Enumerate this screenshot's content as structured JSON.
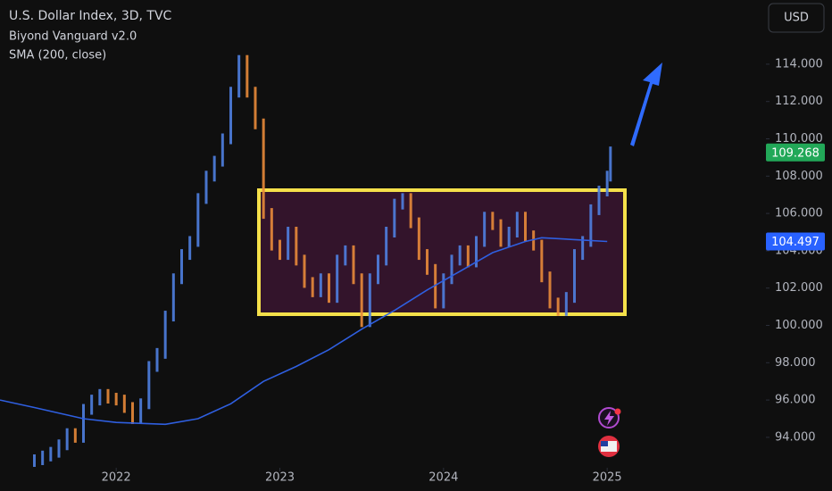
{
  "chart_data": {
    "type": "price",
    "title": "U.S. Dollar Index, 3D, TVC",
    "currency": "USD",
    "xlim": [
      2021.29,
      2025.97
    ],
    "xticks": [
      2022,
      2023,
      2024,
      2025
    ],
    "ylim": [
      92.56,
      117.44
    ],
    "yticks": [
      {
        "value": 94,
        "label": "94.000"
      },
      {
        "value": 96,
        "label": "96.000"
      },
      {
        "value": 98,
        "label": "98.000"
      },
      {
        "value": 100,
        "label": "100.000"
      },
      {
        "value": 102,
        "label": "102.000"
      },
      {
        "value": 104,
        "label": "104.000"
      },
      {
        "value": 106,
        "label": "106.000"
      },
      {
        "value": 108,
        "label": "108.000"
      },
      {
        "value": 110,
        "label": "110.000"
      },
      {
        "value": 112,
        "label": "112.000"
      },
      {
        "value": 114,
        "label": "114.000"
      }
    ],
    "series": [
      {
        "name": "Biyond Vanguard v2.0",
        "up_color": "#4f7fe0",
        "down_color": "#e8893a",
        "label_color": "#22a858",
        "x": [
          2021.5,
          2021.55,
          2021.6,
          2021.65,
          2021.7,
          2021.75,
          2021.8,
          2021.85,
          2021.9,
          2021.95,
          2022.0,
          2022.05,
          2022.1,
          2022.15,
          2022.2,
          2022.25,
          2022.3,
          2022.35,
          2022.4,
          2022.45,
          2022.5,
          2022.55,
          2022.6,
          2022.65,
          2022.7,
          2022.75,
          2022.8,
          2022.85,
          2022.9,
          2022.95,
          2023.0,
          2023.05,
          2023.1,
          2023.15,
          2023.2,
          2023.25,
          2023.3,
          2023.35,
          2023.4,
          2023.45,
          2023.5,
          2023.55,
          2023.6,
          2023.65,
          2023.7,
          2023.75,
          2023.8,
          2023.85,
          2023.9,
          2023.95,
          2024.0,
          2024.05,
          2024.1,
          2024.15,
          2024.2,
          2024.25,
          2024.3,
          2024.35,
          2024.4,
          2024.45,
          2024.5,
          2024.55,
          2024.6,
          2024.65,
          2024.7,
          2024.75,
          2024.8,
          2024.85,
          2024.9,
          2024.95,
          2025.0,
          2025.02
        ],
        "values": [
          92.8,
          93.0,
          93.2,
          93.6,
          94.2,
          94.0,
          95.5,
          96.0,
          96.3,
          96.1,
          96.0,
          95.6,
          95.0,
          95.8,
          97.8,
          98.5,
          100.5,
          102.5,
          103.8,
          104.5,
          106.8,
          108.0,
          108.8,
          110.0,
          112.5,
          114.2,
          112.5,
          110.8,
          106.0,
          104.3,
          103.8,
          105.0,
          103.5,
          102.3,
          101.8,
          102.5,
          101.5,
          103.5,
          104.0,
          102.5,
          100.2,
          102.5,
          103.5,
          105.0,
          106.5,
          106.8,
          105.5,
          103.8,
          103.0,
          101.2,
          102.5,
          103.5,
          104.0,
          103.4,
          104.5,
          105.8,
          105.4,
          104.5,
          105.0,
          105.8,
          104.8,
          104.3,
          102.6,
          101.2,
          100.8,
          101.5,
          103.8,
          104.5,
          106.2,
          107.2,
          108.0,
          109.3
        ],
        "last_value": 109.268
      },
      {
        "name": "SMA (200, close)",
        "color": "#2f5fe0",
        "label_color": "#2962ff",
        "x": [
          2021.29,
          2021.5,
          2021.8,
          2022.0,
          2022.3,
          2022.5,
          2022.7,
          2022.9,
          2023.1,
          2023.3,
          2023.5,
          2023.7,
          2023.9,
          2024.1,
          2024.3,
          2024.5,
          2024.6,
          2024.8,
          2025.0
        ],
        "values": [
          96.0,
          95.6,
          95.0,
          94.8,
          94.7,
          95.0,
          95.8,
          97.0,
          97.8,
          98.7,
          99.8,
          100.8,
          101.9,
          102.9,
          103.9,
          104.5,
          104.7,
          104.6,
          104.5
        ],
        "last_value": 104.497
      }
    ]
  }
}
